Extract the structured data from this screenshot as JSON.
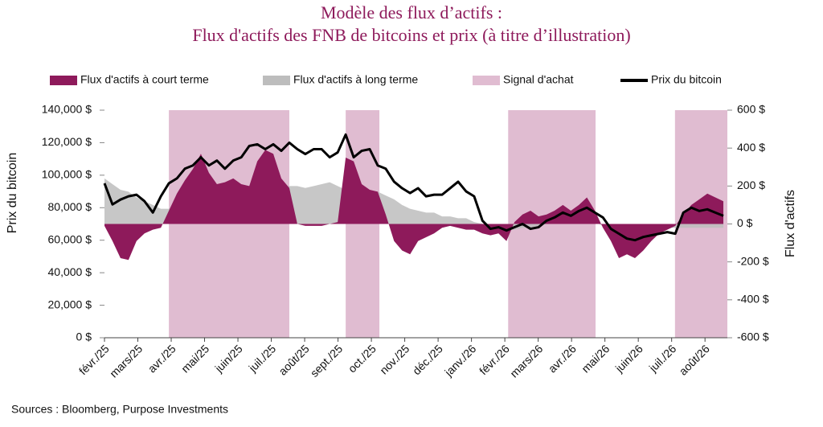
{
  "chart_data": {
    "type": "combo",
    "title": [
      "Modèle des flux d’actifs :",
      "Flux d'actifs des FNB de bitcoins et prix (à titre d’illustration)"
    ],
    "ylabel": "Prix du bitcoin",
    "y2label": "Flux d'actifs",
    "source": "Sources : Bloomberg, Purpose Investments",
    "xlim": [
      0,
      18.67
    ],
    "xticks": [
      {
        "value": 0,
        "label": "févr./25"
      },
      {
        "value": 1,
        "label": "mars/25"
      },
      {
        "value": 2,
        "label": "avr./25"
      },
      {
        "value": 3,
        "label": "mai/25"
      },
      {
        "value": 4,
        "label": "juin/25"
      },
      {
        "value": 5,
        "label": "juil./25"
      },
      {
        "value": 6,
        "label": "août/25"
      },
      {
        "value": 7,
        "label": "sept./25"
      },
      {
        "value": 8,
        "label": "oct./25"
      },
      {
        "value": 9,
        "label": "nov./25"
      },
      {
        "value": 10,
        "label": "déc./25"
      },
      {
        "value": 11,
        "label": "janv./26"
      },
      {
        "value": 12,
        "label": "févr./26"
      },
      {
        "value": 13,
        "label": "mars/26"
      },
      {
        "value": 14,
        "label": "avr./26"
      },
      {
        "value": 15,
        "label": "mai/26"
      },
      {
        "value": 16,
        "label": "juin/26"
      },
      {
        "value": 17,
        "label": "juil./26"
      },
      {
        "value": 18,
        "label": "août/26"
      }
    ],
    "ylim": [
      0,
      140000
    ],
    "yticks": [
      {
        "value": 0,
        "label": "0 $"
      },
      {
        "value": 20000,
        "label": "20,000 $"
      },
      {
        "value": 40000,
        "label": "40,000 $"
      },
      {
        "value": 60000,
        "label": "60,000 $"
      },
      {
        "value": 80000,
        "label": "80,000 $"
      },
      {
        "value": 100000,
        "label": "100,000 $"
      },
      {
        "value": 120000,
        "label": "120,000 $"
      },
      {
        "value": 140000,
        "label": "140,000 $"
      }
    ],
    "y2lim": [
      -600,
      600
    ],
    "y2ticks": [
      {
        "value": -600,
        "label": "-600 $"
      },
      {
        "value": -400,
        "label": "-400 $"
      },
      {
        "value": -200,
        "label": "-200 $"
      },
      {
        "value": 0,
        "label": "0 $"
      },
      {
        "value": 200,
        "label": "200 $"
      },
      {
        "value": 400,
        "label": "400 $"
      },
      {
        "value": 600,
        "label": "600 $"
      }
    ],
    "x": [
      0,
      0.24,
      0.48,
      0.72,
      0.96,
      1.2,
      1.45,
      1.69,
      1.93,
      2.17,
      2.41,
      2.65,
      2.89,
      3.13,
      3.37,
      3.61,
      3.86,
      4.1,
      4.34,
      4.58,
      4.82,
      5.06,
      5.3,
      5.54,
      5.78,
      6.02,
      6.27,
      6.51,
      6.75,
      6.99,
      7.23,
      7.47,
      7.71,
      7.95,
      8.19,
      8.43,
      8.68,
      8.92,
      9.16,
      9.4,
      9.64,
      9.88,
      10.12,
      10.36,
      10.6,
      10.84,
      11.08,
      11.33,
      11.57,
      11.81,
      12.05,
      12.29,
      12.53,
      12.77,
      13.01,
      13.25,
      13.49,
      13.74,
      13.98,
      14.22,
      14.46,
      14.7,
      14.94,
      15.18,
      15.42,
      15.66,
      15.9,
      16.15,
      16.39,
      16.63,
      16.87,
      17.11,
      17.35,
      17.59,
      17.83,
      18.07,
      18.31,
      18.55
    ],
    "series": [
      {
        "name": "Flux d'actifs à court terme",
        "kind": "area",
        "axis": "y2",
        "color": "#8e1a5b",
        "values": [
          -10,
          -90,
          -180,
          -190,
          -90,
          -50,
          -30,
          -20,
          70,
          160,
          230,
          290,
          370,
          270,
          210,
          220,
          240,
          210,
          200,
          330,
          390,
          370,
          240,
          190,
          0,
          -10,
          -10,
          -10,
          0,
          10,
          350,
          330,
          210,
          180,
          170,
          50,
          -90,
          -140,
          -160,
          -90,
          -70,
          -50,
          -20,
          -10,
          -20,
          -30,
          -30,
          -50,
          -60,
          -50,
          -90,
          10,
          50,
          70,
          40,
          50,
          70,
          100,
          70,
          100,
          140,
          70,
          -20,
          -90,
          -180,
          -160,
          -180,
          -140,
          -90,
          -50,
          -30,
          -10,
          50,
          100,
          130,
          160,
          140,
          120
        ]
      },
      {
        "name": "Flux d'actifs à long terme",
        "kind": "area",
        "axis": "y2",
        "color": "#bdbdbd",
        "values": [
          240,
          210,
          180,
          170,
          140,
          120,
          100,
          80,
          80,
          100,
          110,
          80,
          80,
          80,
          100,
          100,
          120,
          130,
          140,
          170,
          180,
          200,
          200,
          200,
          200,
          190,
          200,
          210,
          220,
          200,
          180,
          200,
          200,
          170,
          170,
          150,
          130,
          100,
          80,
          70,
          60,
          60,
          40,
          40,
          30,
          30,
          10,
          0,
          -20,
          -20,
          -30,
          -30,
          -20,
          -20,
          -10,
          0,
          10,
          10,
          10,
          10,
          10,
          10,
          -10,
          -20,
          -20,
          -20,
          -20,
          -20,
          -20,
          -20,
          -20,
          -20,
          -20,
          -20,
          -20,
          -20,
          -20,
          -20
        ]
      },
      {
        "name": "Signal d'achat",
        "kind": "band",
        "color": "#e0bcd1",
        "ranges": [
          [
            1.93,
            5.54
          ],
          [
            7.23,
            8.24
          ],
          [
            12.1,
            14.72
          ],
          [
            17.1,
            18.67
          ]
        ]
      },
      {
        "name": "Prix du bitcoin",
        "kind": "line",
        "axis": "y",
        "color": "#000000",
        "values": [
          95000,
          82000,
          85000,
          87000,
          88000,
          84000,
          77000,
          87000,
          95000,
          98000,
          104000,
          106000,
          111000,
          106000,
          109000,
          104000,
          109000,
          111000,
          118000,
          119000,
          116000,
          119000,
          115000,
          120000,
          116000,
          113000,
          116000,
          116000,
          111000,
          114000,
          125000,
          111000,
          115000,
          116000,
          106000,
          104000,
          96000,
          92000,
          89000,
          92000,
          87000,
          88000,
          88000,
          92000,
          96000,
          90000,
          87000,
          72000,
          67000,
          68000,
          66000,
          68000,
          70000,
          67000,
          68000,
          72000,
          74000,
          77000,
          75000,
          78000,
          80000,
          77000,
          74000,
          67000,
          64000,
          61000,
          60000,
          62000,
          63000,
          64000,
          65000,
          64000,
          77000,
          80000,
          78000,
          79000,
          77000,
          75000
        ]
      }
    ]
  }
}
